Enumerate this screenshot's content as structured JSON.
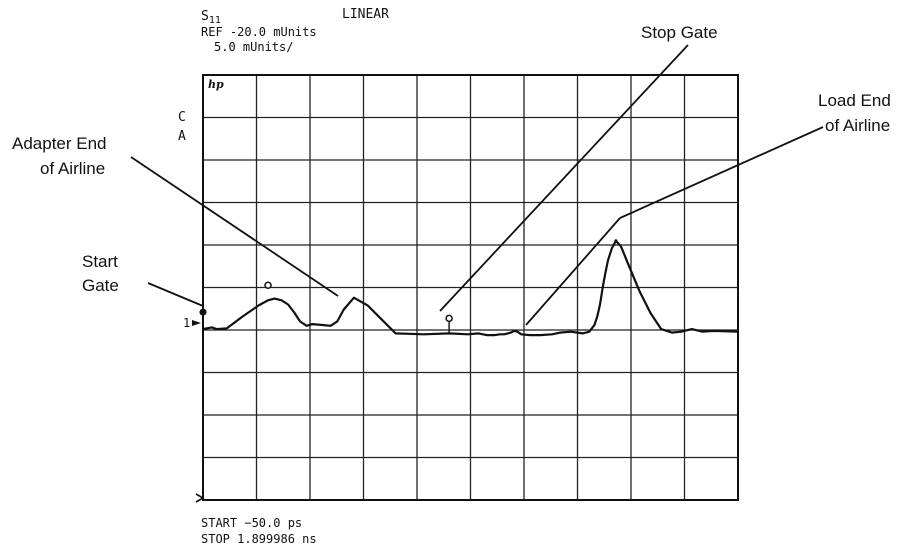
{
  "header": {
    "param_s": "S",
    "param_sub": "11",
    "format": "LINEAR",
    "ref_line": "REF -20.0 mUnits",
    "scale_line": "5.0 mUnits/"
  },
  "screen": {
    "logo": "hp",
    "channel_letters": [
      "C",
      "A"
    ],
    "ref_marker": "1"
  },
  "footer": {
    "start_line": "START  −50.0 ps",
    "stop_line": "STOP    1.899986 ns"
  },
  "annotations": {
    "start_gate": [
      "Start",
      "Gate"
    ],
    "adapter_end": [
      "Adapter End",
      "of Airline"
    ],
    "stop_gate": [
      "Stop Gate"
    ],
    "load_end": [
      "Load End",
      "of Airline"
    ]
  },
  "chart_data": {
    "type": "line",
    "title": "",
    "xlabel": "",
    "ylabel": "",
    "x_unit": "ns",
    "y_unit": "mUnits",
    "xlim": [
      -0.05,
      1.899986
    ],
    "ylim": [
      -20,
      30
    ],
    "grid": true,
    "series": [
      {
        "name": "",
        "x": [
          -0.05,
          -0.018,
          0.0,
          0.037,
          0.095,
          0.153,
          0.187,
          0.211,
          0.236,
          0.26,
          0.284,
          0.304,
          0.328,
          0.348,
          0.381,
          0.415,
          0.439,
          0.463,
          0.5,
          0.55,
          0.652,
          0.755,
          0.847,
          0.916,
          0.954,
          0.984,
          1.002,
          1.014,
          1.033,
          1.047,
          1.061,
          1.072,
          1.084,
          1.096,
          1.11,
          1.14,
          1.179,
          1.223,
          1.252,
          1.29,
          1.334,
          1.358,
          1.377,
          1.387,
          1.397,
          1.407,
          1.416,
          1.426,
          1.44,
          1.455,
          1.474,
          1.503,
          1.542,
          1.581,
          1.62,
          1.659,
          1.693,
          1.732,
          1.771,
          1.81,
          1.899
        ],
        "y": [
          0.1,
          0.3,
          0.1,
          0.2,
          1.6,
          2.9,
          3.5,
          3.7,
          3.5,
          3.0,
          2.0,
          1.0,
          0.5,
          0.7,
          0.6,
          0.5,
          1.0,
          2.4,
          3.8,
          2.9,
          -0.4,
          -0.5,
          -0.4,
          -0.5,
          -0.4,
          -0.6,
          -0.6,
          -0.6,
          -0.5,
          -0.5,
          -0.4,
          -0.3,
          -0.1,
          -0.2,
          -0.5,
          -0.6,
          -0.6,
          -0.5,
          -0.3,
          -0.2,
          -0.4,
          -0.2,
          0.6,
          1.6,
          3.0,
          5.0,
          6.6,
          8.2,
          9.6,
          10.5,
          9.8,
          7.5,
          4.5,
          2.0,
          0.1,
          -0.3,
          -0.2,
          0.1,
          -0.2,
          -0.1,
          -0.2
        ]
      }
    ],
    "markers": [
      {
        "label": "start-gate",
        "x": -0.05,
        "y": 0.1
      },
      {
        "label": "marker-1",
        "x": 0.187,
        "y": 3.5
      },
      {
        "label": "stop-gate",
        "x": 0.847,
        "y": -0.4
      },
      {
        "label": "peak",
        "x": 1.455,
        "y": 10.5
      }
    ]
  }
}
